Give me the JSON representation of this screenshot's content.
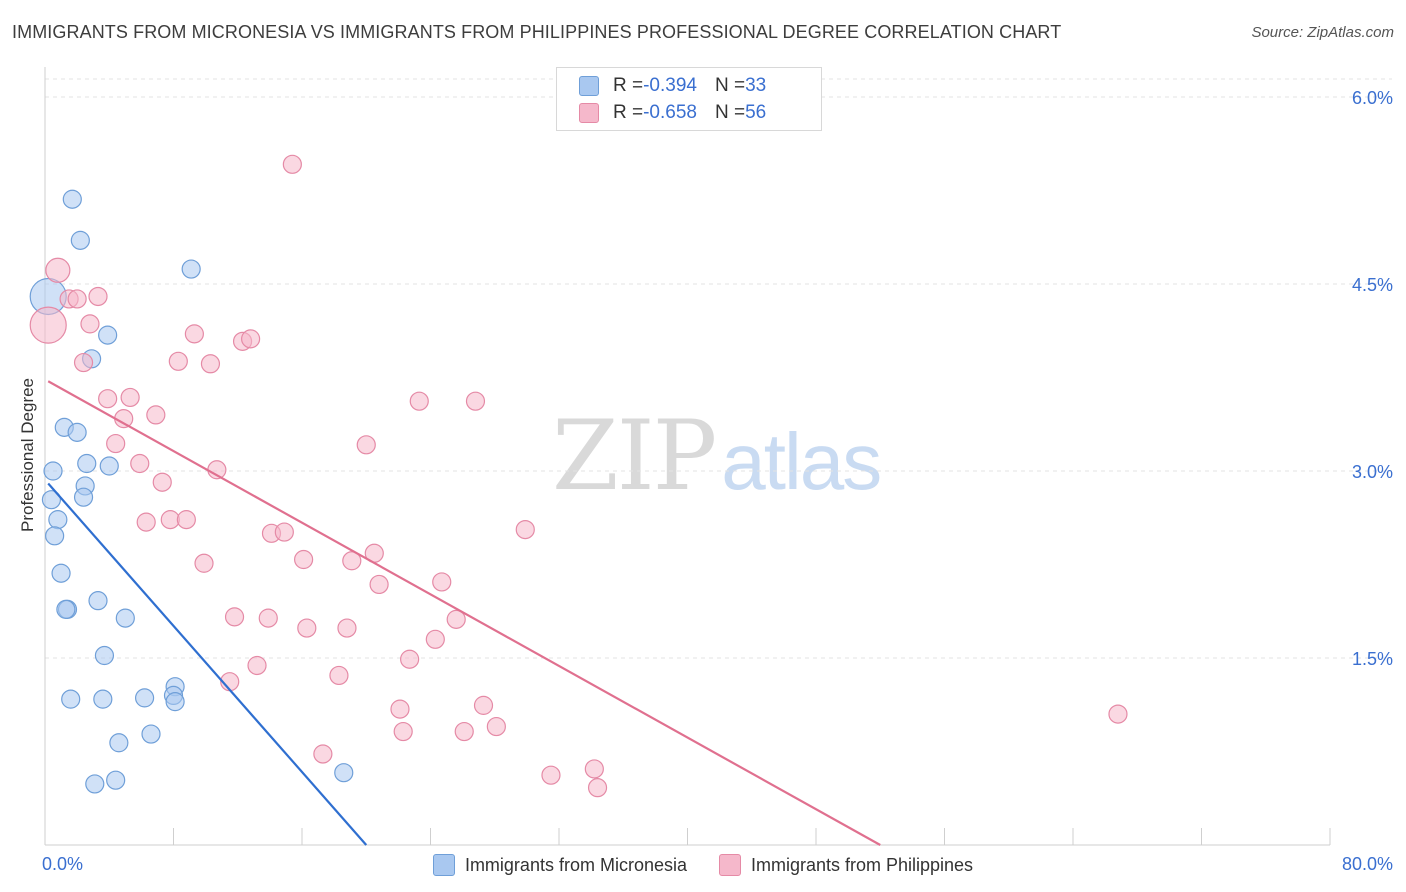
{
  "title": "IMMIGRANTS FROM MICRONESIA VS IMMIGRANTS FROM PHILIPPINES PROFESSIONAL DEGREE CORRELATION CHART",
  "source": "Source: ZipAtlas.com",
  "watermark": {
    "zip": "ZIP",
    "atlas": "atlas"
  },
  "legend_top": [
    {
      "r_label": "R = ",
      "r_value": "-0.394",
      "n_label": "N = ",
      "n_value": "33",
      "color": "#a9c8f0"
    },
    {
      "r_label": "R = ",
      "r_value": "-0.658",
      "n_label": "N = ",
      "n_value": "56",
      "color": "#f5b8cb"
    }
  ],
  "chart_data": {
    "type": "scatter",
    "title": "IMMIGRANTS FROM MICRONESIA VS IMMIGRANTS FROM PHILIPPINES PROFESSIONAL DEGREE CORRELATION CHART",
    "xlabel": "",
    "ylabel": "Professional Degree",
    "xlim": [
      0,
      80
    ],
    "ylim": [
      0,
      6.2
    ],
    "x_tick_labels": [
      "0.0%",
      "80.0%"
    ],
    "y_ticks": [
      1.5,
      3.0,
      4.5,
      6.0
    ],
    "y_tick_labels": [
      "1.5%",
      "3.0%",
      "4.5%",
      "6.0%"
    ],
    "grid": true,
    "legend_position": "bottom",
    "series": [
      {
        "name": "Immigrants from Micronesia",
        "color": "#a9c8f0",
        "stroke": "#6f9fd8",
        "trend_color": "#2f6fd0",
        "trend": {
          "x0": 0.2,
          "y0": 2.9,
          "x1": 20.0,
          "y1": 0.0
        },
        "points": [
          [
            0.2,
            4.4,
            18
          ],
          [
            1.7,
            5.18,
            9
          ],
          [
            2.2,
            4.85,
            9
          ],
          [
            9.1,
            4.62,
            9
          ],
          [
            3.9,
            4.09,
            9
          ],
          [
            2.9,
            3.9,
            9
          ],
          [
            1.2,
            3.35,
            9
          ],
          [
            2.0,
            3.31,
            9
          ],
          [
            2.6,
            3.06,
            9
          ],
          [
            4.0,
            3.04,
            9
          ],
          [
            0.5,
            3.0,
            9
          ],
          [
            2.5,
            2.88,
            9
          ],
          [
            2.4,
            2.79,
            9
          ],
          [
            0.4,
            2.77,
            9
          ],
          [
            0.8,
            2.61,
            9
          ],
          [
            0.6,
            2.48,
            9
          ],
          [
            1.0,
            2.18,
            9
          ],
          [
            3.3,
            1.96,
            9
          ],
          [
            1.4,
            1.89,
            9
          ],
          [
            1.3,
            1.89,
            9
          ],
          [
            5.0,
            1.82,
            9
          ],
          [
            3.7,
            1.52,
            9
          ],
          [
            8.1,
            1.27,
            9
          ],
          [
            8.0,
            1.2,
            9
          ],
          [
            1.6,
            1.17,
            9
          ],
          [
            3.6,
            1.17,
            9
          ],
          [
            6.2,
            1.18,
            9
          ],
          [
            8.1,
            1.15,
            9
          ],
          [
            6.6,
            0.89,
            9
          ],
          [
            4.6,
            0.82,
            9
          ],
          [
            18.6,
            0.58,
            9
          ],
          [
            4.4,
            0.52,
            9
          ],
          [
            3.1,
            0.49,
            9
          ]
        ]
      },
      {
        "name": "Immigrants from Philippines",
        "color": "#f5b8cb",
        "stroke": "#e58aa6",
        "trend_color": "#e0708f",
        "trend": {
          "x0": 0.2,
          "y0": 3.72,
          "x1": 52.0,
          "y1": 0.0
        },
        "points": [
          [
            0.2,
            4.17,
            18
          ],
          [
            0.8,
            4.61,
            12
          ],
          [
            15.4,
            5.46,
            9
          ],
          [
            3.3,
            4.4,
            9
          ],
          [
            1.5,
            4.38,
            9
          ],
          [
            2.0,
            4.38,
            9
          ],
          [
            2.8,
            4.18,
            9
          ],
          [
            9.3,
            4.1,
            9
          ],
          [
            12.3,
            4.04,
            9
          ],
          [
            12.8,
            4.06,
            9
          ],
          [
            8.3,
            3.88,
            9
          ],
          [
            10.3,
            3.86,
            9
          ],
          [
            2.4,
            3.87,
            9
          ],
          [
            3.9,
            3.58,
            9
          ],
          [
            5.3,
            3.59,
            9
          ],
          [
            23.3,
            3.56,
            9
          ],
          [
            26.8,
            3.56,
            9
          ],
          [
            6.9,
            3.45,
            9
          ],
          [
            4.9,
            3.42,
            9
          ],
          [
            4.4,
            3.22,
            9
          ],
          [
            20.0,
            3.21,
            9
          ],
          [
            5.9,
            3.06,
            9
          ],
          [
            10.7,
            3.01,
            9
          ],
          [
            7.3,
            2.91,
            9
          ],
          [
            7.8,
            2.61,
            9
          ],
          [
            8.8,
            2.61,
            9
          ],
          [
            6.3,
            2.59,
            9
          ],
          [
            14.1,
            2.5,
            9
          ],
          [
            14.9,
            2.51,
            9
          ],
          [
            29.9,
            2.53,
            9
          ],
          [
            20.5,
            2.34,
            9
          ],
          [
            16.1,
            2.29,
            9
          ],
          [
            19.1,
            2.28,
            9
          ],
          [
            9.9,
            2.26,
            9
          ],
          [
            24.7,
            2.11,
            9
          ],
          [
            20.8,
            2.09,
            9
          ],
          [
            11.8,
            1.83,
            9
          ],
          [
            13.9,
            1.82,
            9
          ],
          [
            25.6,
            1.81,
            9
          ],
          [
            16.3,
            1.74,
            9
          ],
          [
            18.8,
            1.74,
            9
          ],
          [
            24.3,
            1.65,
            9
          ],
          [
            22.7,
            1.49,
            9
          ],
          [
            13.2,
            1.44,
            9
          ],
          [
            18.3,
            1.36,
            9
          ],
          [
            11.5,
            1.31,
            9
          ],
          [
            27.3,
            1.12,
            9
          ],
          [
            22.1,
            1.09,
            9
          ],
          [
            66.8,
            1.05,
            9
          ],
          [
            28.1,
            0.95,
            9
          ],
          [
            22.3,
            0.91,
            9
          ],
          [
            26.1,
            0.91,
            9
          ],
          [
            17.3,
            0.73,
            9
          ],
          [
            34.2,
            0.61,
            9
          ],
          [
            31.5,
            0.56,
            9
          ],
          [
            34.4,
            0.46,
            9
          ]
        ]
      }
    ]
  }
}
